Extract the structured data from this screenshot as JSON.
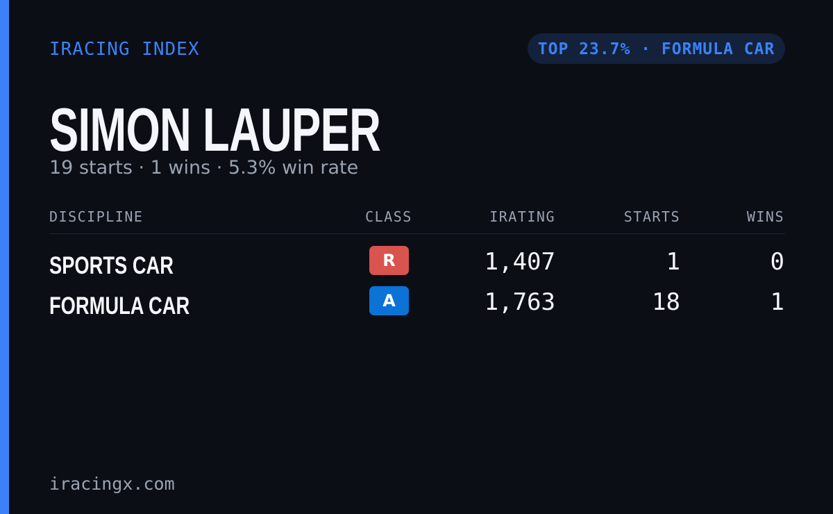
{
  "header": {
    "brand": "IRACING INDEX",
    "badge": "TOP 23.7% · FORMULA CAR"
  },
  "profile": {
    "name": "SIMON LAUPER",
    "summary": "19 starts · 1 wins · 5.3% win rate"
  },
  "table": {
    "columns": [
      "DISCIPLINE",
      "CLASS",
      "IRATING",
      "STARTS",
      "WINS"
    ],
    "rows": [
      [
        "SPORTS CAR",
        "R",
        "1,407",
        "1",
        "0"
      ],
      [
        "FORMULA CAR",
        "A",
        "1,763",
        "18",
        "1"
      ]
    ],
    "class_colors": [
      "#d9534f",
      "#0b72d6"
    ]
  },
  "footer": {
    "site": "iracingx.com"
  }
}
